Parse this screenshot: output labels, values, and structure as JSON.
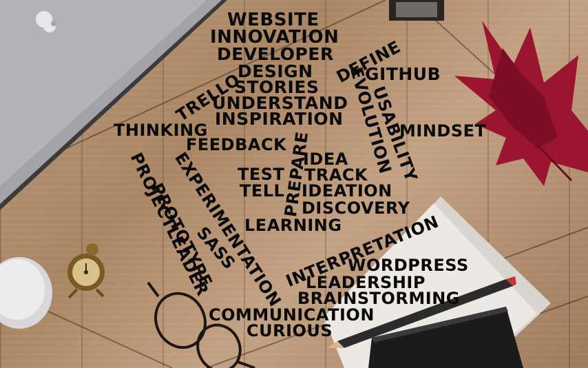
{
  "words": {
    "website": "WEBSITE",
    "innovation": "INNOVATION",
    "developer": "DEVELOPER",
    "define": "DEFINE",
    "design": "DESIGN",
    "github": "GITHUB",
    "trello": "TRELLO",
    "stories": "STORIES",
    "understand": "UNDERSTAND",
    "evolution": "EVOLUTION",
    "usability": "USABILITY",
    "inspiration": "INSPIRATION",
    "thinking": "THINKING",
    "mindset": "MINDSET",
    "feedback": "FEEDBACK",
    "prepare": "PREPARE",
    "idea": "IDEA",
    "experimentation": "EXPERIMENTATION",
    "test": "TEST",
    "track": "TRACK",
    "projectleader": "PROJECTLEADER",
    "prototype": "PROTOTYPE",
    "tell": "TELL",
    "ideation": "IDEATION",
    "discovery": "DISCOVERY",
    "sass": "SASS",
    "learning": "LEARNING",
    "interpretation": "INTERPRETATION",
    "wordpress": "WORDPRESS",
    "leadership": "LEADERSHIP",
    "brainstorming": "BRAINSTORMING",
    "communication": "COMMUNICATION",
    "curious": "CURIOUS"
  },
  "colors": {
    "wood": "#a98563",
    "leaf": "#9b1530",
    "laptop": "#8f8f93",
    "text": "#0a0a0a",
    "notebook": "#1b1b1b",
    "paper": "#e9e6e2"
  },
  "objects": [
    "laptop",
    "maple-leaf",
    "alarm-clock",
    "eyeglasses",
    "mouse",
    "paper-sheets",
    "notebook",
    "pencil",
    "books"
  ]
}
